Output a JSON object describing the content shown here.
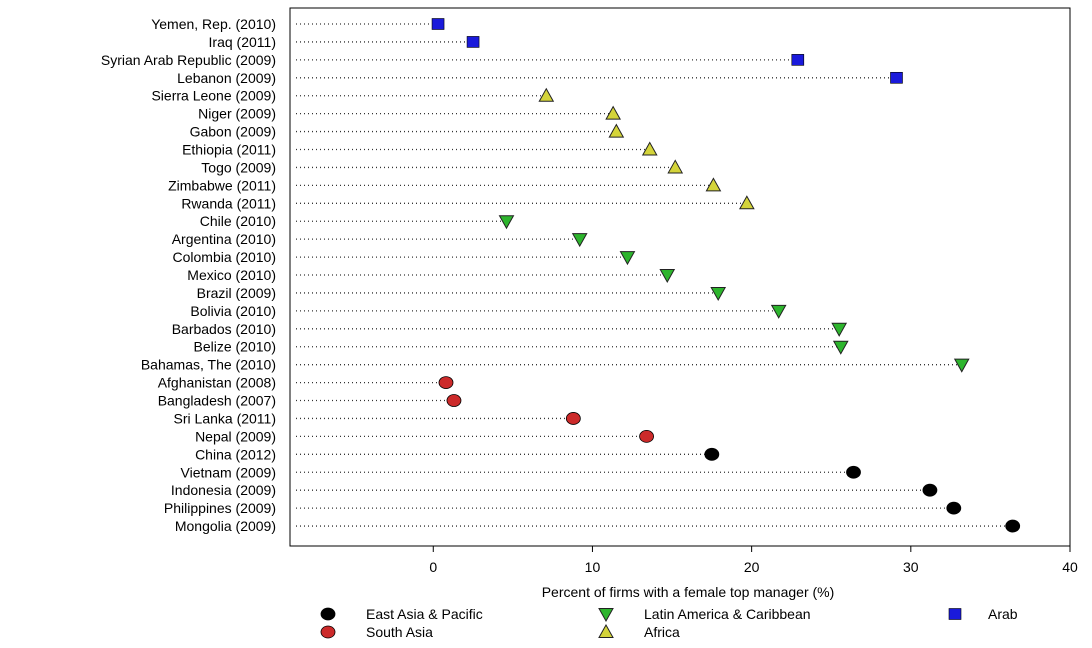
{
  "chart_data": {
    "type": "scatter",
    "xlabel": "Percent of firms with a female top manager (%)",
    "xlim": [
      -9,
      40
    ],
    "xticks": [
      0,
      10,
      20,
      30,
      40
    ],
    "grid": false,
    "legend_position": "bottom",
    "categories": [
      "Yemen, Rep. (2010)",
      "Iraq (2011)",
      "Syrian Arab Republic (2009)",
      "Lebanon (2009)",
      "Sierra Leone (2009)",
      "Niger (2009)",
      "Gabon (2009)",
      "Ethiopia (2011)",
      "Togo (2009)",
      "Zimbabwe (2011)",
      "Rwanda (2011)",
      "Chile (2010)",
      "Argentina (2010)",
      "Colombia (2010)",
      "Mexico (2010)",
      "Brazil (2009)",
      "Bolivia (2010)",
      "Barbados (2010)",
      "Belize (2010)",
      "Bahamas, The (2010)",
      "Afghanistan (2008)",
      "Bangladesh (2007)",
      "Sri Lanka (2011)",
      "Nepal (2009)",
      "China (2012)",
      "Vietnam (2009)",
      "Indonesia (2009)",
      "Philippines (2009)",
      "Mongolia (2009)"
    ],
    "series": [
      {
        "name": "Arab",
        "marker": "square",
        "color": "#1a1adb",
        "points": [
          {
            "label": "Yemen, Rep. (2010)",
            "value": 0.3
          },
          {
            "label": "Iraq (2011)",
            "value": 2.5
          },
          {
            "label": "Syrian Arab Republic (2009)",
            "value": 22.9
          },
          {
            "label": "Lebanon (2009)",
            "value": 29.1
          }
        ]
      },
      {
        "name": "Africa",
        "marker": "triangle-up",
        "color": "#d4d43a",
        "points": [
          {
            "label": "Sierra Leone (2009)",
            "value": 7.1
          },
          {
            "label": "Niger (2009)",
            "value": 11.3
          },
          {
            "label": "Gabon (2009)",
            "value": 11.5
          },
          {
            "label": "Ethiopia (2011)",
            "value": 13.6
          },
          {
            "label": "Togo (2009)",
            "value": 15.2
          },
          {
            "label": "Zimbabwe (2011)",
            "value": 17.6
          },
          {
            "label": "Rwanda (2011)",
            "value": 19.7
          }
        ]
      },
      {
        "name": "Latin America & Caribbean",
        "marker": "triangle-down",
        "color": "#2db52d",
        "points": [
          {
            "label": "Chile (2010)",
            "value": 4.6
          },
          {
            "label": "Argentina (2010)",
            "value": 9.2
          },
          {
            "label": "Colombia (2010)",
            "value": 12.2
          },
          {
            "label": "Mexico (2010)",
            "value": 14.7
          },
          {
            "label": "Brazil (2009)",
            "value": 17.9
          },
          {
            "label": "Bolivia (2010)",
            "value": 21.7
          },
          {
            "label": "Barbados (2010)",
            "value": 25.5
          },
          {
            "label": "Belize (2010)",
            "value": 25.6
          },
          {
            "label": "Bahamas, The (2010)",
            "value": 33.2
          }
        ]
      },
      {
        "name": "South Asia",
        "marker": "circle",
        "color": "#cc2a2a",
        "points": [
          {
            "label": "Afghanistan (2008)",
            "value": 0.8
          },
          {
            "label": "Bangladesh (2007)",
            "value": 1.3
          },
          {
            "label": "Sri Lanka (2011)",
            "value": 8.8
          },
          {
            "label": "Nepal (2009)",
            "value": 13.4
          }
        ]
      },
      {
        "name": "East Asia & Pacific",
        "marker": "circle",
        "color": "#000000",
        "points": [
          {
            "label": "China (2012)",
            "value": 17.5
          },
          {
            "label": "Vietnam (2009)",
            "value": 26.4
          },
          {
            "label": "Indonesia (2009)",
            "value": 31.2
          },
          {
            "label": "Philippines (2009)",
            "value": 32.7
          },
          {
            "label": "Mongolia (2009)",
            "value": 36.4
          }
        ]
      }
    ],
    "legend": [
      {
        "series": "East Asia & Pacific",
        "label": "East Asia & Pacific"
      },
      {
        "series": "Latin America & Caribbean",
        "label": "Latin America & Caribbean"
      },
      {
        "series": "Arab",
        "label": "Arab"
      },
      {
        "series": "South Asia",
        "label": "South Asia"
      },
      {
        "series": "Africa",
        "label": "Africa"
      }
    ]
  }
}
